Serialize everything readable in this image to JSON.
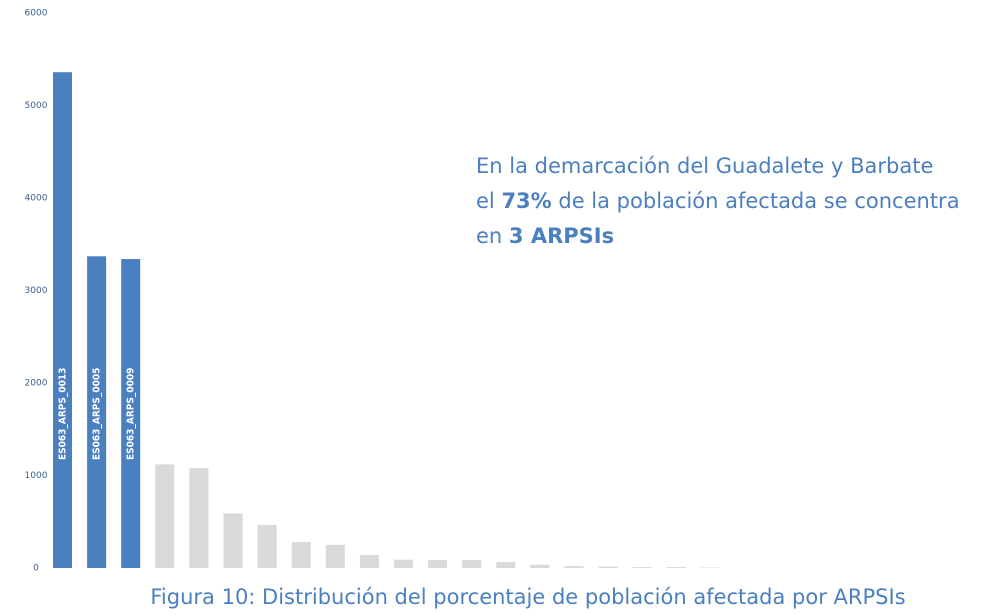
{
  "chart_data": {
    "type": "bar",
    "categories": [
      "ES063_ARPS_0013",
      "ES063_ARPS_0005",
      "ES063_ARPS_0009",
      null,
      null,
      null,
      null,
      null,
      null,
      null,
      null,
      null,
      null,
      null,
      null,
      null,
      null,
      null,
      null,
      null
    ],
    "values": [
      5360,
      3370,
      3340,
      1120,
      1080,
      590,
      465,
      280,
      250,
      140,
      90,
      85,
      85,
      65,
      35,
      20,
      15,
      10,
      10,
      5
    ],
    "colors": [
      "#4a7fc0",
      "#4a7fc0",
      "#4a7fc0",
      "#d9d9d9",
      "#d9d9d9",
      "#d9d9d9",
      "#d9d9d9",
      "#d9d9d9",
      "#d9d9d9",
      "#d9d9d9",
      "#d9d9d9",
      "#d9d9d9",
      "#d9d9d9",
      "#d9d9d9",
      "#d9d9d9",
      "#d9d9d9",
      "#d9d9d9",
      "#d9d9d9",
      "#d9d9d9",
      "#d9d9d9"
    ],
    "ylim": [
      0,
      6000
    ],
    "yticks": [
      0,
      1000,
      2000,
      3000,
      4000,
      5000,
      6000
    ],
    "grid": false,
    "annotation": [
      [
        {
          "text": "En la demarcación del Guadalete y Barbate",
          "bold": false
        }
      ],
      [
        {
          "text": "el ",
          "bold": false
        },
        {
          "text": "73%",
          "bold": true
        },
        {
          "text": " de la población afectada se concentra",
          "bold": false
        }
      ],
      [
        {
          "text": "en ",
          "bold": false
        },
        {
          "text": "3 ARPSIs",
          "bold": true
        }
      ]
    ],
    "caption": "Figura 10: Distribución del porcentaje de población afectada por ARPSIs"
  }
}
